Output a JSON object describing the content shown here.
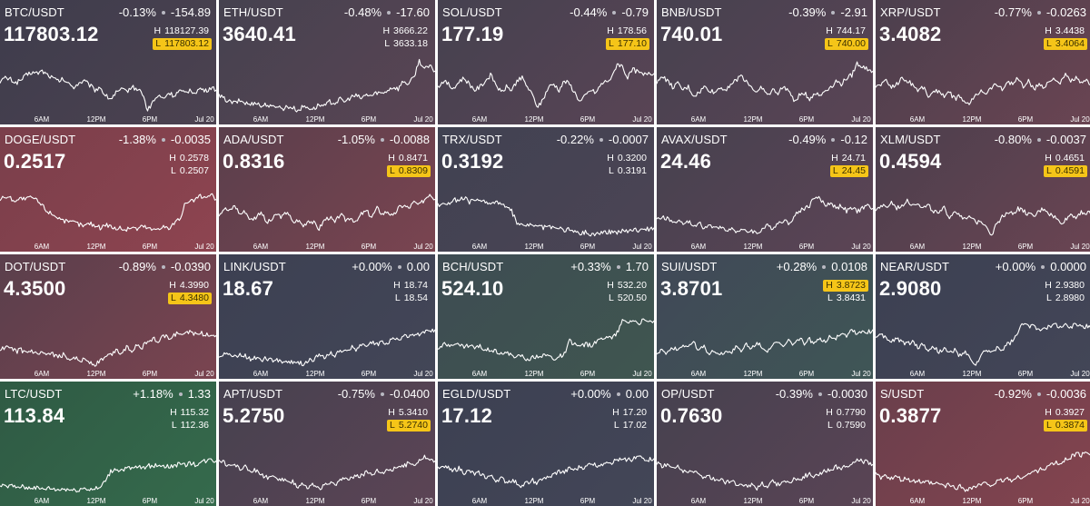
{
  "colors": {
    "neutral": "#414555",
    "down": "#8a4550",
    "down_soft": "#5e4858",
    "up": "#3e5a52",
    "up_strong": "#356a4c",
    "highlight": "#f5c518"
  },
  "time_ticks": [
    "6AM",
    "12PM",
    "6PM",
    "Jul 20"
  ],
  "tiles": [
    {
      "symbol": "BTC/USDT",
      "change_pct": "-0.13%",
      "change_abs": "-154.89",
      "price": "117803.12",
      "high": "118127.39",
      "low": "117803.12",
      "marked": "low",
      "bg_top": "#3e3c4c",
      "bg_bottom": "#4c4250",
      "series": [
        0.55,
        0.6,
        0.58,
        0.52,
        0.57,
        0.65,
        0.7,
        0.68,
        0.72,
        0.66,
        0.6,
        0.55,
        0.58,
        0.5,
        0.45,
        0.52,
        0.55,
        0.48,
        0.4,
        0.45,
        0.3,
        0.25,
        0.35,
        0.4,
        0.38,
        0.45,
        0.42,
        0.35,
        0.05,
        0.2,
        0.3,
        0.25,
        0.35,
        0.3,
        0.38,
        0.34,
        0.4,
        0.36,
        0.42,
        0.38,
        0.44,
        0.4
      ]
    },
    {
      "symbol": "ETH/USDT",
      "change_pct": "-0.48%",
      "change_abs": "-17.60",
      "price": "3640.41",
      "high": "3666.22",
      "low": "3633.18",
      "marked": "none",
      "bg_top": "#45424f",
      "bg_bottom": "#5a4454",
      "series": [
        0.3,
        0.25,
        0.2,
        0.18,
        0.22,
        0.18,
        0.15,
        0.2,
        0.12,
        0.16,
        0.1,
        0.14,
        0.08,
        0.12,
        0.1,
        0.05,
        0.12,
        0.1,
        0.08,
        0.15,
        0.12,
        0.2,
        0.18,
        0.24,
        0.2,
        0.28,
        0.3,
        0.26,
        0.32,
        0.3,
        0.36,
        0.34,
        0.4,
        0.45,
        0.42,
        0.55,
        0.5,
        0.62,
        0.9,
        0.75,
        0.8,
        0.72
      ]
    },
    {
      "symbol": "SOL/USDT",
      "change_pct": "-0.44%",
      "change_abs": "-0.79",
      "price": "177.19",
      "high": "178.56",
      "low": "177.10",
      "marked": "low",
      "bg_top": "#45414f",
      "bg_bottom": "#594455",
      "series": [
        0.45,
        0.55,
        0.5,
        0.4,
        0.55,
        0.6,
        0.5,
        0.4,
        0.45,
        0.55,
        0.65,
        0.5,
        0.35,
        0.45,
        0.4,
        0.55,
        0.6,
        0.45,
        0.3,
        0.1,
        0.25,
        0.45,
        0.5,
        0.4,
        0.55,
        0.5,
        0.35,
        0.2,
        0.3,
        0.4,
        0.35,
        0.5,
        0.55,
        0.6,
        0.85,
        0.8,
        0.6,
        0.75,
        0.7,
        0.65,
        0.7,
        0.68
      ]
    },
    {
      "symbol": "BNB/USDT",
      "change_pct": "-0.39%",
      "change_abs": "-2.91",
      "price": "740.01",
      "high": "744.17",
      "low": "740.00",
      "marked": "low",
      "bg_top": "#46414f",
      "bg_bottom": "#5a4455",
      "series": [
        0.5,
        0.65,
        0.55,
        0.45,
        0.5,
        0.4,
        0.45,
        0.3,
        0.35,
        0.45,
        0.4,
        0.35,
        0.45,
        0.4,
        0.5,
        0.55,
        0.65,
        0.55,
        0.45,
        0.35,
        0.45,
        0.3,
        0.4,
        0.35,
        0.45,
        0.4,
        0.2,
        0.3,
        0.35,
        0.25,
        0.35,
        0.3,
        0.4,
        0.45,
        0.55,
        0.5,
        0.6,
        0.65,
        0.85,
        0.8,
        0.75,
        0.72
      ]
    },
    {
      "symbol": "XRP/USDT",
      "change_pct": "-0.77%",
      "change_abs": "-0.0263",
      "price": "3.4082",
      "high": "3.4438",
      "low": "3.4064",
      "marked": "low",
      "bg_top": "#4b3f4d",
      "bg_bottom": "#6a4452",
      "series": [
        0.45,
        0.5,
        0.55,
        0.45,
        0.5,
        0.6,
        0.55,
        0.5,
        0.4,
        0.45,
        0.3,
        0.35,
        0.4,
        0.3,
        0.35,
        0.25,
        0.3,
        0.15,
        0.2,
        0.3,
        0.4,
        0.35,
        0.45,
        0.5,
        0.4,
        0.55,
        0.5,
        0.6,
        0.45,
        0.55,
        0.4,
        0.5,
        0.45,
        0.55,
        0.6,
        0.5,
        0.65,
        0.55,
        0.6,
        0.5,
        0.55,
        0.5
      ]
    },
    {
      "symbol": "DOGE/USDT",
      "change_pct": "-1.38%",
      "change_abs": "-0.0035",
      "price": "0.2517",
      "high": "0.2578",
      "low": "0.2507",
      "marked": "none",
      "bg_top": "#7a3f4b",
      "bg_bottom": "#8e4450",
      "series": [
        0.7,
        0.75,
        0.72,
        0.68,
        0.72,
        0.7,
        0.74,
        0.68,
        0.6,
        0.5,
        0.45,
        0.4,
        0.35,
        0.3,
        0.32,
        0.28,
        0.25,
        0.3,
        0.26,
        0.22,
        0.28,
        0.25,
        0.2,
        0.22,
        0.18,
        0.24,
        0.2,
        0.25,
        0.22,
        0.18,
        0.22,
        0.25,
        0.2,
        0.3,
        0.35,
        0.6,
        0.65,
        0.7,
        0.75,
        0.72,
        0.78,
        0.7
      ]
    },
    {
      "symbol": "ADA/USDT",
      "change_pct": "-1.05%",
      "change_abs": "-0.0088",
      "price": "0.8316",
      "high": "0.8471",
      "low": "0.8309",
      "marked": "low",
      "bg_top": "#5a3f4c",
      "bg_bottom": "#7a4450",
      "series": [
        0.45,
        0.55,
        0.5,
        0.6,
        0.45,
        0.5,
        0.35,
        0.4,
        0.5,
        0.3,
        0.35,
        0.45,
        0.4,
        0.5,
        0.3,
        0.35,
        0.25,
        0.35,
        0.3,
        0.2,
        0.35,
        0.4,
        0.3,
        0.45,
        0.35,
        0.4,
        0.3,
        0.45,
        0.5,
        0.4,
        0.55,
        0.45,
        0.5,
        0.4,
        0.55,
        0.6,
        0.55,
        0.65,
        0.6,
        0.7,
        0.8,
        0.7
      ]
    },
    {
      "symbol": "TRX/USDT",
      "change_pct": "-0.22%",
      "change_abs": "-0.0007",
      "price": "0.3192",
      "high": "0.3200",
      "low": "0.3191",
      "marked": "none",
      "bg_top": "#404252",
      "bg_bottom": "#4c4454",
      "series": [
        0.6,
        0.65,
        0.62,
        0.7,
        0.68,
        0.72,
        0.66,
        0.7,
        0.65,
        0.68,
        0.62,
        0.66,
        0.64,
        0.55,
        0.5,
        0.3,
        0.25,
        0.28,
        0.24,
        0.26,
        0.22,
        0.25,
        0.2,
        0.22,
        0.18,
        0.2,
        0.15,
        0.12,
        0.15,
        0.1,
        0.12,
        0.15,
        0.13,
        0.16,
        0.14,
        0.18,
        0.15,
        0.2,
        0.18,
        0.22,
        0.2,
        0.22
      ]
    },
    {
      "symbol": "AVAX/USDT",
      "change_pct": "-0.49%",
      "change_abs": "-0.12",
      "price": "24.46",
      "high": "24.71",
      "low": "24.45",
      "marked": "low",
      "bg_top": "#46414f",
      "bg_bottom": "#5c4455",
      "series": [
        0.35,
        0.4,
        0.38,
        0.3,
        0.35,
        0.28,
        0.32,
        0.25,
        0.3,
        0.22,
        0.26,
        0.2,
        0.25,
        0.18,
        0.22,
        0.15,
        0.2,
        0.14,
        0.18,
        0.12,
        0.2,
        0.25,
        0.22,
        0.3,
        0.35,
        0.3,
        0.4,
        0.5,
        0.55,
        0.6,
        0.75,
        0.7,
        0.6,
        0.65,
        0.55,
        0.6,
        0.5,
        0.55,
        0.5,
        0.55,
        0.6,
        0.55
      ]
    },
    {
      "symbol": "XLM/USDT",
      "change_pct": "-0.80%",
      "change_abs": "-0.0037",
      "price": "0.4594",
      "high": "0.4651",
      "low": "0.4591",
      "marked": "low",
      "bg_top": "#4b3f4d",
      "bg_bottom": "#6a4452",
      "series": [
        0.5,
        0.6,
        0.55,
        0.65,
        0.55,
        0.6,
        0.7,
        0.6,
        0.65,
        0.55,
        0.6,
        0.5,
        0.45,
        0.55,
        0.4,
        0.5,
        0.45,
        0.35,
        0.4,
        0.3,
        0.35,
        0.25,
        0.1,
        0.3,
        0.4,
        0.5,
        0.45,
        0.55,
        0.5,
        0.45,
        0.4,
        0.5,
        0.55,
        0.45,
        0.4,
        0.3,
        0.35,
        0.45,
        0.4,
        0.5,
        0.45,
        0.5
      ]
    },
    {
      "symbol": "DOT/USDT",
      "change_pct": "-0.89%",
      "change_abs": "-0.0390",
      "price": "4.3500",
      "high": "4.3990",
      "low": "4.3480",
      "marked": "low",
      "bg_top": "#5a3f4c",
      "bg_bottom": "#7a4450",
      "series": [
        0.3,
        0.35,
        0.32,
        0.28,
        0.3,
        0.25,
        0.28,
        0.22,
        0.25,
        0.2,
        0.24,
        0.18,
        0.22,
        0.15,
        0.2,
        0.12,
        0.15,
        0.1,
        0.05,
        0.12,
        0.18,
        0.22,
        0.3,
        0.25,
        0.35,
        0.3,
        0.4,
        0.35,
        0.45,
        0.5,
        0.45,
        0.55,
        0.5,
        0.55,
        0.6,
        0.55,
        0.62,
        0.58,
        0.6,
        0.55,
        0.58,
        0.55
      ]
    },
    {
      "symbol": "LINK/USDT",
      "change_pct": "+0.00%",
      "change_abs": "0.00",
      "price": "18.67",
      "high": "18.74",
      "low": "18.54",
      "marked": "none",
      "bg_top": "#3c4052",
      "bg_bottom": "#434657",
      "series": [
        0.2,
        0.25,
        0.22,
        0.18,
        0.22,
        0.2,
        0.15,
        0.18,
        0.14,
        0.16,
        0.12,
        0.15,
        0.1,
        0.12,
        0.08,
        0.1,
        0.06,
        0.12,
        0.15,
        0.2,
        0.18,
        0.25,
        0.22,
        0.3,
        0.28,
        0.35,
        0.32,
        0.38,
        0.35,
        0.42,
        0.4,
        0.45,
        0.42,
        0.5,
        0.48,
        0.55,
        0.52,
        0.58,
        0.56,
        0.62,
        0.6,
        0.65
      ]
    },
    {
      "symbol": "BCH/USDT",
      "change_pct": "+0.33%",
      "change_abs": "1.70",
      "price": "524.10",
      "high": "532.20",
      "low": "520.50",
      "marked": "none",
      "bg_top": "#3e4c52",
      "bg_bottom": "#3f5650",
      "series": [
        0.35,
        0.4,
        0.38,
        0.42,
        0.38,
        0.36,
        0.38,
        0.34,
        0.36,
        0.3,
        0.32,
        0.28,
        0.26,
        0.24,
        0.22,
        0.18,
        0.2,
        0.15,
        0.18,
        0.2,
        0.22,
        0.2,
        0.15,
        0.18,
        0.25,
        0.45,
        0.4,
        0.35,
        0.4,
        0.38,
        0.42,
        0.5,
        0.55,
        0.5,
        0.6,
        0.8,
        0.78,
        0.82,
        0.76,
        0.8,
        0.78,
        0.8
      ]
    },
    {
      "symbol": "SUI/USDT",
      "change_pct": "+0.28%",
      "change_abs": "0.0108",
      "price": "3.8701",
      "high": "3.8723",
      "low": "3.8431",
      "marked": "high",
      "bg_top": "#404857",
      "bg_bottom": "#3f5656",
      "series": [
        0.2,
        0.3,
        0.25,
        0.35,
        0.3,
        0.4,
        0.35,
        0.45,
        0.3,
        0.35,
        0.25,
        0.3,
        0.2,
        0.3,
        0.25,
        0.35,
        0.28,
        0.4,
        0.32,
        0.45,
        0.35,
        0.3,
        0.38,
        0.42,
        0.35,
        0.45,
        0.4,
        0.5,
        0.42,
        0.48,
        0.4,
        0.5,
        0.45,
        0.55,
        0.5,
        0.6,
        0.55,
        0.65,
        0.58,
        0.62,
        0.6,
        0.65
      ]
    },
    {
      "symbol": "NEAR/USDT",
      "change_pct": "+0.00%",
      "change_abs": "0.0000",
      "price": "2.9080",
      "high": "2.9380",
      "low": "2.8980",
      "marked": "none",
      "bg_top": "#3c4052",
      "bg_bottom": "#434657",
      "series": [
        0.5,
        0.55,
        0.5,
        0.45,
        0.5,
        0.45,
        0.4,
        0.45,
        0.35,
        0.4,
        0.3,
        0.35,
        0.28,
        0.32,
        0.25,
        0.3,
        0.2,
        0.25,
        0.15,
        0.05,
        0.2,
        0.3,
        0.25,
        0.35,
        0.3,
        0.4,
        0.45,
        0.6,
        0.75,
        0.7,
        0.72,
        0.65,
        0.7,
        0.68,
        0.75,
        0.7,
        0.72,
        0.68,
        0.75,
        0.72,
        0.7,
        0.72
      ]
    },
    {
      "symbol": "LTC/USDT",
      "change_pct": "+1.18%",
      "change_abs": "1.33",
      "price": "113.84",
      "high": "115.32",
      "low": "112.36",
      "marked": "none",
      "bg_top": "#2f5a44",
      "bg_bottom": "#356a4c",
      "series": [
        0.15,
        0.14,
        0.16,
        0.13,
        0.15,
        0.12,
        0.14,
        0.12,
        0.1,
        0.12,
        0.11,
        0.09,
        0.11,
        0.1,
        0.08,
        0.1,
        0.12,
        0.1,
        0.11,
        0.12,
        0.25,
        0.4,
        0.45,
        0.42,
        0.46,
        0.44,
        0.48,
        0.46,
        0.5,
        0.48,
        0.52,
        0.5,
        0.48,
        0.5,
        0.52,
        0.5,
        0.55,
        0.52,
        0.55,
        0.58,
        0.6,
        0.58
      ]
    },
    {
      "symbol": "APT/USDT",
      "change_pct": "-0.75%",
      "change_abs": "-0.0400",
      "price": "5.2750",
      "high": "5.3410",
      "low": "5.2740",
      "marked": "low",
      "bg_top": "#46414f",
      "bg_bottom": "#5c4455",
      "series": [
        0.6,
        0.55,
        0.5,
        0.52,
        0.45,
        0.48,
        0.4,
        0.42,
        0.35,
        0.3,
        0.32,
        0.25,
        0.28,
        0.2,
        0.22,
        0.15,
        0.2,
        0.12,
        0.18,
        0.1,
        0.15,
        0.2,
        0.18,
        0.25,
        0.3,
        0.28,
        0.35,
        0.32,
        0.4,
        0.35,
        0.42,
        0.38,
        0.45,
        0.42,
        0.5,
        0.48,
        0.55,
        0.52,
        0.6,
        0.65,
        0.6,
        0.58
      ]
    },
    {
      "symbol": "EGLD/USDT",
      "change_pct": "+0.00%",
      "change_abs": "0.00",
      "price": "17.12",
      "high": "17.20",
      "low": "17.02",
      "marked": "none",
      "bg_top": "#3c4052",
      "bg_bottom": "#434657",
      "series": [
        0.5,
        0.45,
        0.48,
        0.42,
        0.45,
        0.38,
        0.4,
        0.35,
        0.38,
        0.3,
        0.32,
        0.25,
        0.28,
        0.22,
        0.25,
        0.2,
        0.15,
        0.22,
        0.25,
        0.2,
        0.3,
        0.28,
        0.35,
        0.4,
        0.38,
        0.45,
        0.42,
        0.48,
        0.46,
        0.55,
        0.5,
        0.52,
        0.58,
        0.55,
        0.6,
        0.58,
        0.62,
        0.6,
        0.65,
        0.62,
        0.6,
        0.62
      ]
    },
    {
      "symbol": "OP/USDT",
      "change_pct": "-0.39%",
      "change_abs": "-0.0030",
      "price": "0.7630",
      "high": "0.7790",
      "low": "0.7590",
      "marked": "none",
      "bg_top": "#46414f",
      "bg_bottom": "#5a4455",
      "series": [
        0.55,
        0.5,
        0.52,
        0.45,
        0.48,
        0.4,
        0.42,
        0.38,
        0.35,
        0.3,
        0.32,
        0.25,
        0.28,
        0.22,
        0.25,
        0.18,
        0.2,
        0.15,
        0.18,
        0.12,
        0.2,
        0.15,
        0.22,
        0.18,
        0.25,
        0.2,
        0.28,
        0.25,
        0.32,
        0.35,
        0.3,
        0.38,
        0.42,
        0.4,
        0.48,
        0.45,
        0.52,
        0.5,
        0.6,
        0.58,
        0.55,
        0.52
      ]
    },
    {
      "symbol": "S/USDT",
      "change_pct": "-0.92%",
      "change_abs": "-0.0036",
      "price": "0.3877",
      "high": "0.3927",
      "low": "0.3874",
      "marked": "low",
      "bg_top": "#6a3f4c",
      "bg_bottom": "#84444f",
      "series": [
        0.35,
        0.3,
        0.32,
        0.28,
        0.3,
        0.25,
        0.28,
        0.22,
        0.25,
        0.2,
        0.22,
        0.18,
        0.2,
        0.15,
        0.18,
        0.12,
        0.15,
        0.1,
        0.12,
        0.15,
        0.18,
        0.2,
        0.18,
        0.22,
        0.25,
        0.28,
        0.25,
        0.3,
        0.32,
        0.35,
        0.4,
        0.42,
        0.45,
        0.5,
        0.55,
        0.52,
        0.6,
        0.65,
        0.7,
        0.68,
        0.72,
        0.7
      ]
    }
  ]
}
